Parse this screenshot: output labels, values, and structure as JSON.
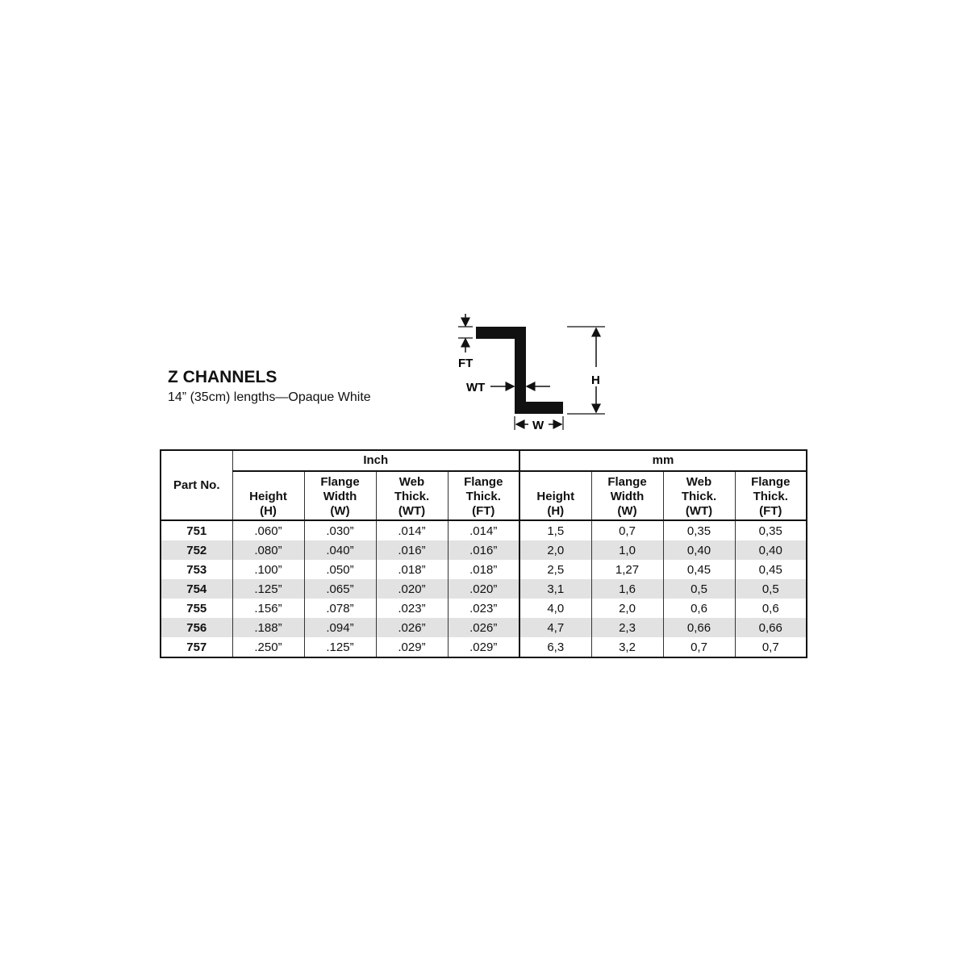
{
  "header": {
    "title": "Z CHANNELS",
    "subtitle": "14” (35cm) lengths—Opaque White"
  },
  "diagram": {
    "labels": {
      "ft": "FT",
      "wt": "WT",
      "h": "H",
      "w": "W"
    }
  },
  "table": {
    "part_header": "Part No.",
    "groups": [
      "Inch",
      "mm"
    ],
    "columns": [
      [
        "Height",
        "(H)"
      ],
      [
        "Flange",
        "Width",
        "(W)"
      ],
      [
        "Web",
        "Thick.",
        "(WT)"
      ],
      [
        "Flange",
        "Thick.",
        "(FT)"
      ]
    ],
    "rows": [
      {
        "part": "751",
        "inch": [
          ".060”",
          ".030”",
          ".014”",
          ".014”"
        ],
        "mm": [
          "1,5",
          "0,7",
          "0,35",
          "0,35"
        ]
      },
      {
        "part": "752",
        "inch": [
          ".080”",
          ".040”",
          ".016”",
          ".016”"
        ],
        "mm": [
          "2,0",
          "1,0",
          "0,40",
          "0,40"
        ]
      },
      {
        "part": "753",
        "inch": [
          ".100”",
          ".050”",
          ".018”",
          ".018”"
        ],
        "mm": [
          "2,5",
          "1,27",
          "0,45",
          "0,45"
        ]
      },
      {
        "part": "754",
        "inch": [
          ".125”",
          ".065”",
          ".020”",
          ".020”"
        ],
        "mm": [
          "3,1",
          "1,6",
          "0,5",
          "0,5"
        ]
      },
      {
        "part": "755",
        "inch": [
          ".156”",
          ".078”",
          ".023”",
          ".023”"
        ],
        "mm": [
          "4,0",
          "2,0",
          "0,6",
          "0,6"
        ]
      },
      {
        "part": "756",
        "inch": [
          ".188”",
          ".094”",
          ".026”",
          ".026”"
        ],
        "mm": [
          "4,7",
          "2,3",
          "0,66",
          "0,66"
        ]
      },
      {
        "part": "757",
        "inch": [
          ".250”",
          ".125”",
          ".029”",
          ".029”"
        ],
        "mm": [
          "6,3",
          "3,2",
          "0,7",
          "0,7"
        ]
      }
    ],
    "stripe_color": "#e2e2e2"
  }
}
